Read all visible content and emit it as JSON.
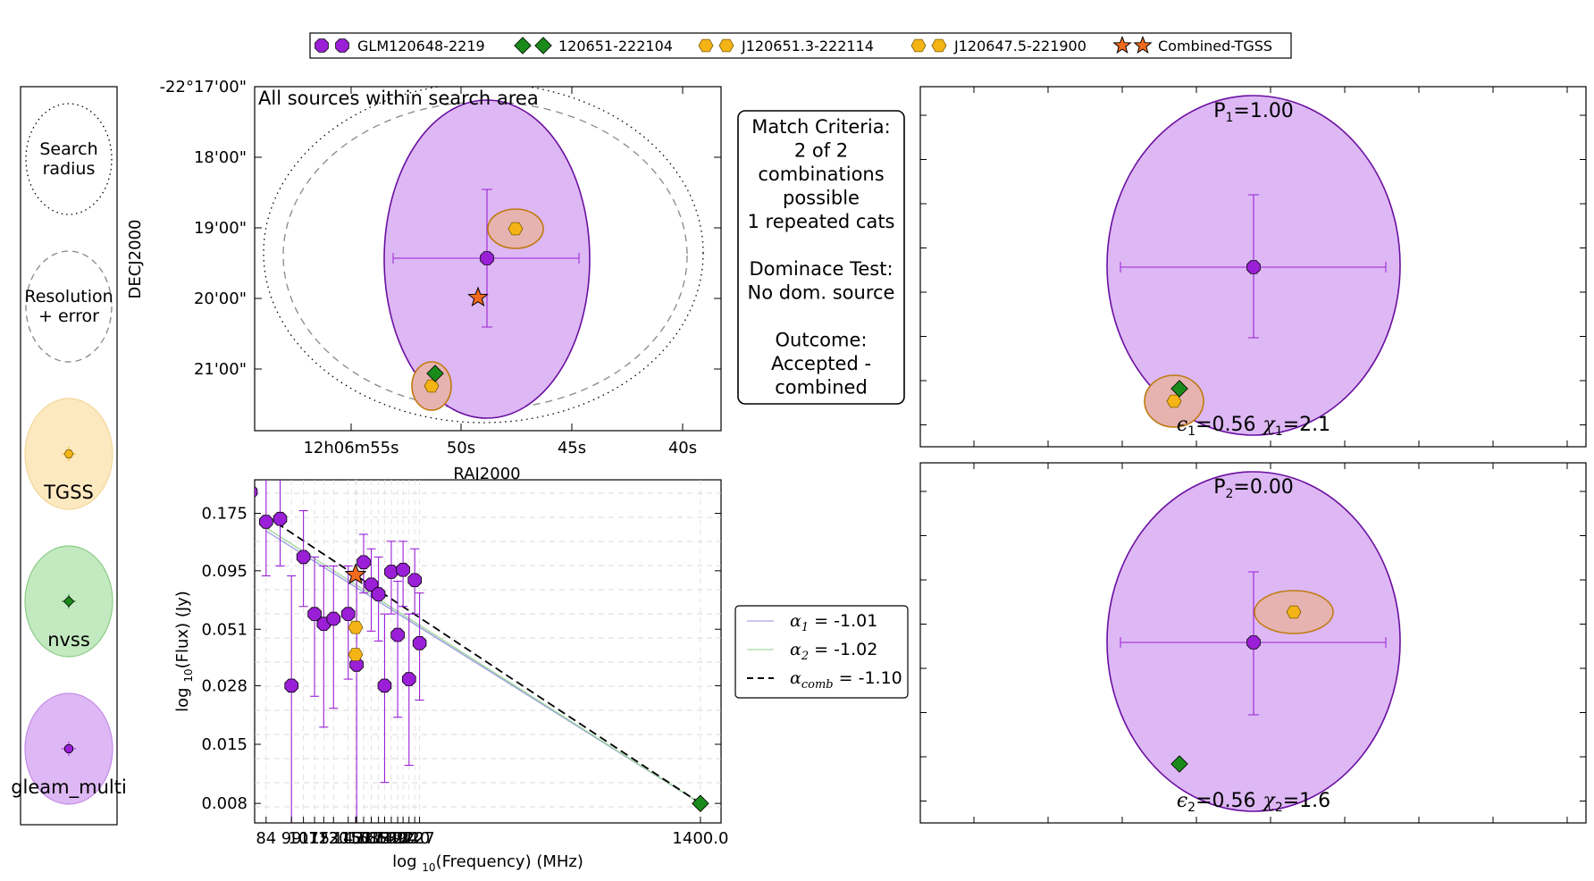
{
  "legend_top": [
    {
      "label": "GLM120648-2219",
      "marker": "octagon",
      "color": "#9a1fd6"
    },
    {
      "label": "120651-222104",
      "marker": "diamond",
      "color": "#1a8a1a"
    },
    {
      "label": "J120651.3-222114",
      "marker": "hexagon",
      "color": "#f5b416"
    },
    {
      "label": "J120647.5-221900",
      "marker": "hexagon",
      "color": "#f5b416"
    },
    {
      "label": "Combined-TGSS",
      "marker": "star",
      "color": "#f26b1d"
    }
  ],
  "left_key": {
    "search_radius": [
      "Search",
      "radius"
    ],
    "resolution": [
      "Resolution",
      "+ error"
    ],
    "catalogues": [
      {
        "name": "TGSS",
        "fill": "#fde9c0",
        "edge": "#f3d79a",
        "marker": "#f5b416"
      },
      {
        "name": "nvss",
        "fill": "#c3e9c0",
        "edge": "#8bcc86",
        "marker": "#1a8a1a"
      },
      {
        "name": "gleam_multi",
        "fill": "#ddb8f4",
        "edge": "#c58be8",
        "marker": "#9a1fd6"
      }
    ]
  },
  "match_box": {
    "lines": [
      "Match Criteria:",
      "2 of 2",
      "combinations",
      "possible",
      "1 repeated cats",
      "",
      "Dominace Test:",
      "No dom. source",
      "",
      "Outcome:",
      "Accepted -",
      "combined"
    ]
  },
  "chart_data": [
    {
      "type": "scatter",
      "title": "All sources within search area",
      "xlabel": "RAJ2000",
      "ylabel": "DECJ2000",
      "xticks": [
        "12h06m55s",
        "50s",
        "45s",
        "40s"
      ],
      "yticks": [
        "-22°17'00\"",
        "18'00\"",
        "19'00\"",
        "20'00\"",
        "21'00\""
      ],
      "sources": [
        {
          "name": "GLM120648-2219",
          "ra": "12h06m48.8s",
          "dec": "-22°19'26\""
        },
        {
          "name": "J120647.5-221900",
          "ra": "12h06m47.5s",
          "dec": "-22°19'00\""
        },
        {
          "name": "120651-222104",
          "ra": "12h06m51.1s",
          "dec": "-22°21'04\""
        },
        {
          "name": "J120651.3-222114",
          "ra": "12h06m51.3s",
          "dec": "-22°21'14\""
        },
        {
          "name": "Combined-TGSS",
          "ra": "12h06m49.3s",
          "dec": "-22°20'00\""
        }
      ]
    },
    {
      "type": "scatter",
      "xlabel": "log10(Frequency) (MHz)",
      "ylabel": "log10(Flux) (Jy)",
      "x_scale": "log",
      "y_scale": "log",
      "xticks": [
        "84",
        "99",
        "107",
        "115",
        "122",
        "130",
        "143",
        "150",
        "151",
        "158",
        "166",
        "174",
        "181",
        "189",
        "197",
        "204",
        "212",
        "220",
        "227",
        "1400.0"
      ],
      "yticks": [
        "0.175",
        "0.095",
        "0.051",
        "0.028",
        "0.015",
        "0.008"
      ],
      "yrange": [
        0.0065,
        0.25
      ],
      "xrange": [
        78,
        1600
      ],
      "gleam": [
        {
          "f": 76,
          "s": 0.22,
          "lo": 0.12,
          "hi": 0.35
        },
        {
          "f": 84,
          "s": 0.16,
          "lo": 0.09,
          "hi": 0.28
        },
        {
          "f": 92,
          "s": 0.165,
          "lo": 0.1,
          "hi": 0.26
        },
        {
          "f": 99,
          "s": 0.028,
          "lo": 0.005,
          "hi": 0.09
        },
        {
          "f": 107,
          "s": 0.11,
          "lo": 0.065,
          "hi": 0.18
        },
        {
          "f": 115,
          "s": 0.06,
          "lo": 0.025,
          "hi": 0.11
        },
        {
          "f": 122,
          "s": 0.054,
          "lo": 0.018,
          "hi": 0.1
        },
        {
          "f": 130,
          "s": 0.057,
          "lo": 0.022,
          "hi": 0.1
        },
        {
          "f": 143,
          "s": 0.06,
          "lo": 0.03,
          "hi": 0.1
        },
        {
          "f": 151,
          "s": 0.035,
          "lo": 0.003,
          "hi": 0.09
        },
        {
          "f": 158,
          "s": 0.104,
          "lo": 0.075,
          "hi": 0.14
        },
        {
          "f": 166,
          "s": 0.082,
          "lo": 0.05,
          "hi": 0.12
        },
        {
          "f": 174,
          "s": 0.074,
          "lo": 0.045,
          "hi": 0.11
        },
        {
          "f": 181,
          "s": 0.028,
          "lo": 0.01,
          "hi": 0.06
        },
        {
          "f": 189,
          "s": 0.094,
          "lo": 0.06,
          "hi": 0.13
        },
        {
          "f": 197,
          "s": 0.048,
          "lo": 0.02,
          "hi": 0.085
        },
        {
          "f": 204,
          "s": 0.096,
          "lo": 0.065,
          "hi": 0.13
        },
        {
          "f": 212,
          "s": 0.03,
          "lo": 0.012,
          "hi": 0.06
        },
        {
          "f": 220,
          "s": 0.086,
          "lo": 0.06,
          "hi": 0.12
        },
        {
          "f": 227,
          "s": 0.044,
          "lo": 0.024,
          "hi": 0.075
        }
      ],
      "tgss": [
        {
          "f": 150,
          "s": 0.052
        },
        {
          "f": 150,
          "s": 0.039
        }
      ],
      "combined": [
        {
          "f": 150,
          "s": 0.091
        }
      ],
      "nvss": [
        {
          "f": 1400,
          "s": 0.008
        }
      ],
      "fits": [
        {
          "label": "α1 = -1.01",
          "color": "#9e9ee0",
          "pts": [
            [
              84,
              0.145
            ],
            [
              1400,
              0.008
            ]
          ]
        },
        {
          "label": "α2 = -1.02",
          "color": "#9ed69e",
          "pts": [
            [
              84,
              0.15
            ],
            [
              1400,
              0.008
            ]
          ]
        },
        {
          "label": "αcomb = -1.10",
          "color": "#000000",
          "dashed": true,
          "pts": [
            [
              84,
              0.17
            ],
            [
              1400,
              0.008
            ]
          ]
        }
      ]
    },
    {
      "type": "scatter",
      "label_top": "P1=1.00",
      "label_bottom": "ϵ1=0.56  χ1=2.1"
    },
    {
      "type": "scatter",
      "label_top": "P2=0.00",
      "label_bottom": "ϵ2=0.56  χ2=1.6"
    }
  ],
  "fit_legend": [
    {
      "sym": "α",
      "sub": "1",
      "rest": " = -1.01",
      "color": "#b6b6ea"
    },
    {
      "sym": "α",
      "sub": "2",
      "rest": " = -1.02",
      "color": "#b6e0b6"
    },
    {
      "sym": "α",
      "sub": "comb",
      "rest": " = -1.10",
      "color": "#000000",
      "dashed": true
    }
  ],
  "p1": {
    "P": "P",
    "Psub": "1",
    "Pval": "=1.00",
    "e": "ϵ",
    "esub": "1",
    "eval": "=0.56",
    "c": "χ",
    "csub": "1",
    "cval": "=2.1"
  },
  "p2": {
    "P": "P",
    "Psub": "2",
    "Pval": "=0.00",
    "e": "ϵ",
    "esub": "2",
    "eval": "=0.56",
    "c": "χ",
    "csub": "2",
    "cval": "=1.6"
  }
}
